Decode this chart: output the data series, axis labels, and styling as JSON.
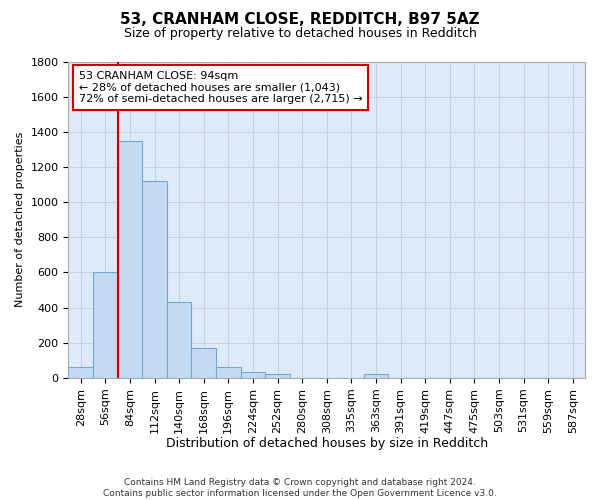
{
  "title1": "53, CRANHAM CLOSE, REDDITCH, B97 5AZ",
  "title2": "Size of property relative to detached houses in Redditch",
  "xlabel": "Distribution of detached houses by size in Redditch",
  "ylabel": "Number of detached properties",
  "categories": [
    "28sqm",
    "56sqm",
    "84sqm",
    "112sqm",
    "140sqm",
    "168sqm",
    "196sqm",
    "224sqm",
    "252sqm",
    "280sqm",
    "308sqm",
    "335sqm",
    "363sqm",
    "391sqm",
    "419sqm",
    "447sqm",
    "475sqm",
    "503sqm",
    "531sqm",
    "559sqm",
    "587sqm"
  ],
  "values": [
    60,
    600,
    1350,
    1120,
    430,
    170,
    65,
    35,
    20,
    0,
    0,
    0,
    20,
    0,
    0,
    0,
    0,
    0,
    0,
    0,
    0
  ],
  "bar_color": "#c5d9f0",
  "bar_edge_color": "#6fa8d8",
  "vline_color": "#cc0000",
  "vline_index": 1.5,
  "annotation_line1": "53 CRANHAM CLOSE: 94sqm",
  "annotation_line2": "← 28% of detached houses are smaller (1,043)",
  "annotation_line3": "72% of semi-detached houses are larger (2,715) →",
  "ylim_max": 1800,
  "yticks": [
    0,
    200,
    400,
    600,
    800,
    1000,
    1200,
    1400,
    1600,
    1800
  ],
  "footer_line1": "Contains HM Land Registry data © Crown copyright and database right 2024.",
  "footer_line2": "Contains public sector information licensed under the Open Government Licence v3.0.",
  "plot_bg": "#ddeaf8",
  "fig_bg": "#ffffff",
  "grid_color": "#c5d0e0",
  "title1_fontsize": 11,
  "title2_fontsize": 9,
  "ylabel_fontsize": 8,
  "xlabel_fontsize": 9,
  "tick_fontsize": 8,
  "ann_fontsize": 8,
  "footer_fontsize": 6.5
}
